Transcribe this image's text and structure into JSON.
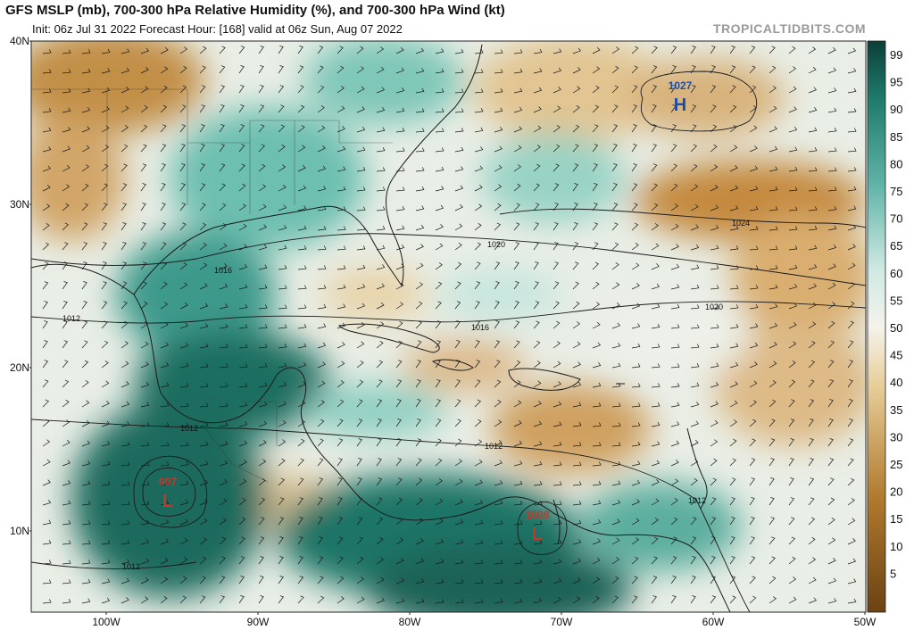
{
  "header": {
    "title": "GFS MSLP (mb), 700-300 hPa Relative Humidity (%), and 700-300 hPa Wind (kt)",
    "subtitle": "Init: 06z Jul 31 2022   Forecast Hour: [168]   valid at 06z Sun, Aug 07 2022",
    "brand": "TROPICALTIDBITS.COM"
  },
  "axes": {
    "lat_labels": [
      "40N",
      "30N",
      "20N",
      "10N"
    ],
    "lon_labels": [
      "100W",
      "90W",
      "80W",
      "70W",
      "60W",
      "50W"
    ]
  },
  "colorbar": {
    "ticks": [
      "99",
      "95",
      "90",
      "85",
      "80",
      "75",
      "70",
      "65",
      "60",
      "55",
      "50",
      "45",
      "40",
      "35",
      "30",
      "25",
      "20",
      "15",
      "10",
      "5"
    ],
    "dry_color": "#9c6a1e",
    "mid_color": "#f4f1e8",
    "moist_color": "#0d544a"
  },
  "pressure_systems": [
    {
      "type": "H",
      "value": "1027",
      "color": "#1a4fa8"
    },
    {
      "type": "L",
      "value": "997",
      "color": "#c0392b"
    },
    {
      "type": "L",
      "value": "1008",
      "color": "#c0392b"
    }
  ],
  "isobar_labels": [
    "1024",
    "1020",
    "1020",
    "1016",
    "1016",
    "1012",
    "1012",
    "1012",
    "1012",
    "1012"
  ]
}
